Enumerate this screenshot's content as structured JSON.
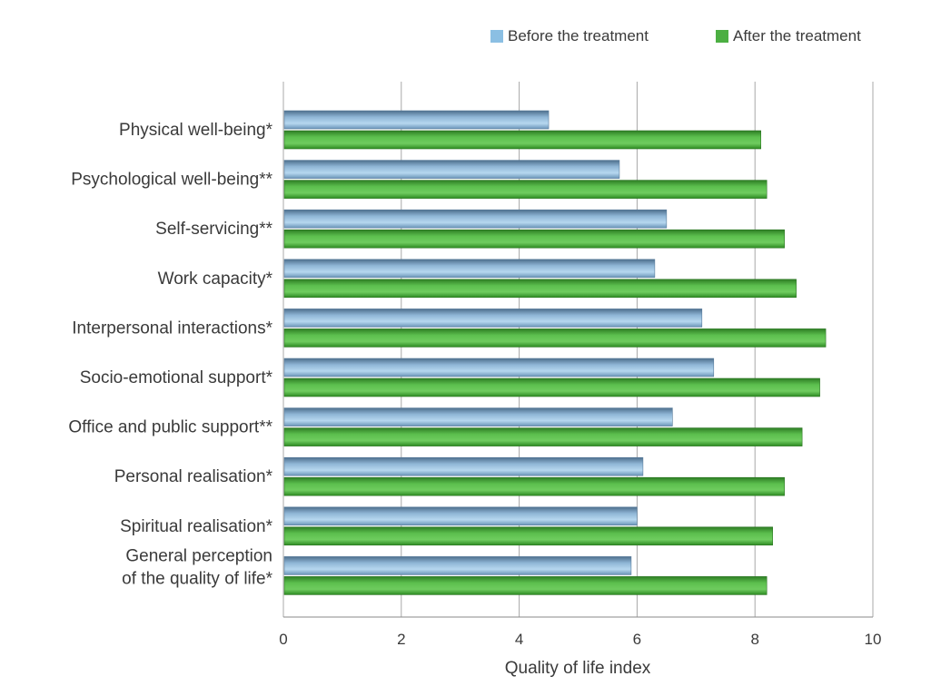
{
  "chart_data": {
    "type": "bar",
    "orientation": "horizontal",
    "categories": [
      [
        "Physical well-being*"
      ],
      [
        "Psychological well-being**"
      ],
      [
        "Self-servicing**"
      ],
      [
        "Work capacity*"
      ],
      [
        "Interpersonal interactions*"
      ],
      [
        "Socio-emotional support*"
      ],
      [
        "Office and public support**"
      ],
      [
        "Personal realisation*"
      ],
      [
        "Spiritual realisation*"
      ],
      [
        "General perception",
        "of the quality of life*"
      ]
    ],
    "series": [
      {
        "name": "Before the treatment",
        "color": "#8bbfe3",
        "values": [
          4.5,
          5.7,
          6.5,
          6.3,
          7.1,
          7.3,
          6.6,
          6.1,
          6.0,
          5.9
        ]
      },
      {
        "name": "After the treatment",
        "color": "#4caf42",
        "values": [
          8.1,
          8.2,
          8.5,
          8.7,
          9.2,
          9.1,
          8.8,
          8.5,
          8.3,
          8.2
        ]
      }
    ],
    "xlabel": "Quality of life index",
    "xlim": [
      0,
      10
    ],
    "xticks": [
      0,
      2,
      4,
      6,
      8,
      10
    ],
    "grid": "vertical",
    "legend_position": "top-right"
  }
}
